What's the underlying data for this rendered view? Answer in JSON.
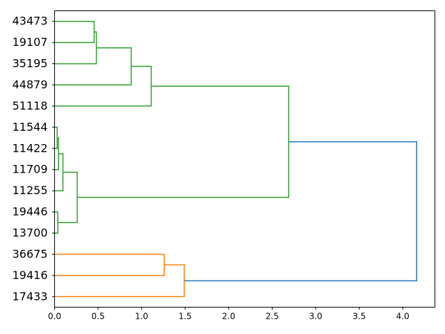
{
  "chart_data": {
    "type": "dendrogram",
    "orientation": "right",
    "xlim": [
      0,
      4.37
    ],
    "xticks": [
      "0.0",
      "0.5",
      "1.0",
      "1.5",
      "2.0",
      "2.5",
      "3.0",
      "3.5",
      "4.0"
    ],
    "xtick_values": [
      0,
      0.5,
      1.0,
      1.5,
      2.0,
      2.5,
      3.0,
      3.5,
      4.0
    ],
    "leaves": [
      "43473",
      "19107",
      "35195",
      "44879",
      "51118",
      "11544",
      "11422",
      "11709",
      "11255",
      "19446",
      "13700",
      "36675",
      "19416",
      "17433"
    ],
    "colors": {
      "green": "#2ca02c",
      "orange": "#ff7f0e",
      "blue": "#1f77b4"
    },
    "links": [
      {
        "a": "43473",
        "b": "19107",
        "id": "c1",
        "height": 0.455,
        "color": "green"
      },
      {
        "a": "c1",
        "b": "35195",
        "id": "c2",
        "height": 0.48,
        "color": "green"
      },
      {
        "a": "c2",
        "b": "44879",
        "id": "c3",
        "height": 0.88,
        "color": "green"
      },
      {
        "a": "c3",
        "b": "51118",
        "id": "c4",
        "height": 1.11,
        "color": "green"
      },
      {
        "a": "11544",
        "b": "11422",
        "id": "c5",
        "height": 0.03,
        "color": "green"
      },
      {
        "a": "c5",
        "b": "11709",
        "id": "c6",
        "height": 0.045,
        "color": "green"
      },
      {
        "a": "c6",
        "b": "11255",
        "id": "c7",
        "height": 0.096,
        "color": "green"
      },
      {
        "a": "19446",
        "b": "13700",
        "id": "c8",
        "height": 0.037,
        "color": "green"
      },
      {
        "a": "c7",
        "b": "c8",
        "id": "c9",
        "height": 0.26,
        "color": "green"
      },
      {
        "a": "c4",
        "b": "c9",
        "id": "c10",
        "height": 2.69,
        "color": "green"
      },
      {
        "a": "36675",
        "b": "19416",
        "id": "c11",
        "height": 1.26,
        "color": "orange"
      },
      {
        "a": "c11",
        "b": "17433",
        "id": "c12",
        "height": 1.49,
        "color": "orange"
      },
      {
        "a": "c10",
        "b": "c12",
        "id": "c13",
        "height": 4.16,
        "color": "blue"
      }
    ]
  }
}
